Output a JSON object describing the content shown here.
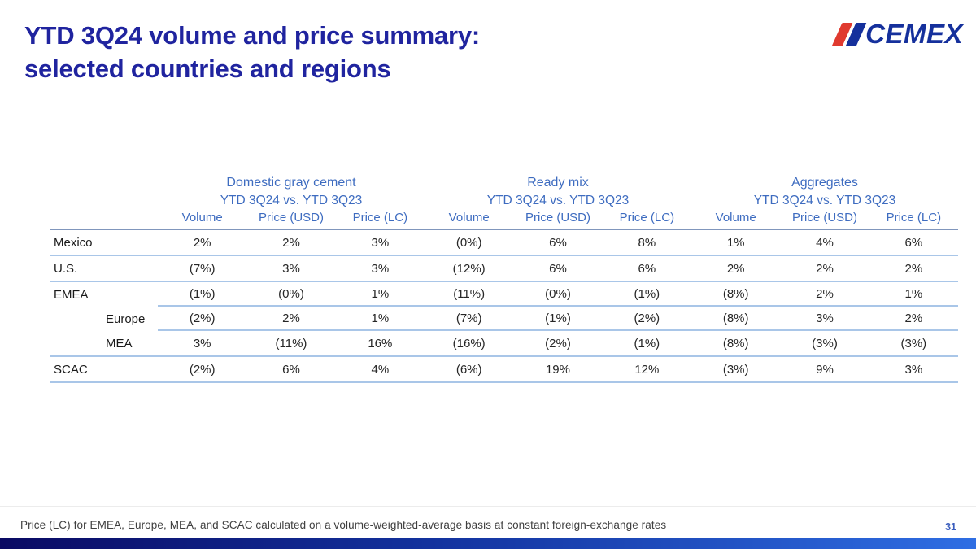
{
  "header": {
    "title_line1": "YTD 3Q24 volume and price summary:",
    "title_line2": "selected countries and regions"
  },
  "logo": {
    "text": "CEMEX"
  },
  "colors": {
    "title_blue": "#20249f",
    "table_header_blue": "#3e6cc0",
    "row_separator_light_blue": "#a9c6e8",
    "header_underline_blue": "#8096bc",
    "logo_blue": "#15309c",
    "logo_red": "#e03a2f",
    "bottom_bar_gradient": [
      "#0a0a63",
      "#2f6ee3"
    ]
  },
  "table": {
    "groups": [
      {
        "title": "Domestic gray cement",
        "subtitle": "YTD 3Q24 vs. YTD 3Q23"
      },
      {
        "title": "Ready mix",
        "subtitle": "YTD 3Q24 vs. YTD 3Q23"
      },
      {
        "title": "Aggregates",
        "subtitle": "YTD 3Q24 vs. YTD 3Q23"
      }
    ],
    "columns": [
      "Volume",
      "Price (USD)",
      "Price (LC)",
      "Volume",
      "Price (USD)",
      "Price (LC)",
      "Volume",
      "Price (USD)",
      "Price (LC)"
    ],
    "rows": [
      {
        "label": "Mexico",
        "indent": false,
        "rule": "full",
        "values": [
          "2%",
          "2%",
          "3%",
          "(0%)",
          "6%",
          "8%",
          "1%",
          "4%",
          "6%"
        ]
      },
      {
        "label": "U.S.",
        "indent": false,
        "rule": "full",
        "values": [
          "(7%)",
          "3%",
          "3%",
          "(12%)",
          "6%",
          "6%",
          "2%",
          "2%",
          "2%"
        ]
      },
      {
        "label": "EMEA",
        "indent": false,
        "rule": "indented",
        "values": [
          "(1%)",
          "(0%)",
          "1%",
          "(11%)",
          "(0%)",
          "(1%)",
          "(8%)",
          "2%",
          "1%"
        ]
      },
      {
        "label": "Europe",
        "indent": true,
        "rule": "indented",
        "values": [
          "(2%)",
          "2%",
          "1%",
          "(7%)",
          "(1%)",
          "(2%)",
          "(8%)",
          "3%",
          "2%"
        ]
      },
      {
        "label": "MEA",
        "indent": true,
        "rule": "full",
        "values": [
          "3%",
          "(11%)",
          "16%",
          "(16%)",
          "(2%)",
          "(1%)",
          "(8%)",
          "(3%)",
          "(3%)"
        ]
      },
      {
        "label": "SCAC",
        "indent": false,
        "rule": "full",
        "values": [
          "(2%)",
          "6%",
          "4%",
          "(6%)",
          "19%",
          "12%",
          "(3%)",
          "9%",
          "3%"
        ]
      }
    ]
  },
  "footnote": "Price (LC) for EMEA, Europe, MEA, and SCAC calculated on a volume-weighted-average basis at constant foreign-exchange rates",
  "page_number": "31"
}
